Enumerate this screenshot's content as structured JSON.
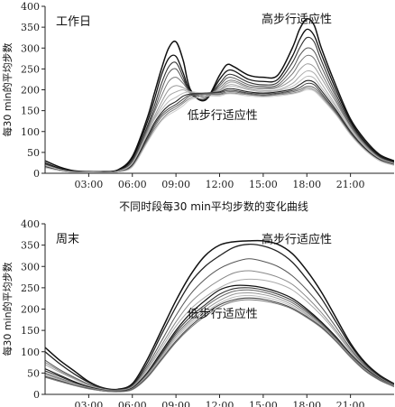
{
  "figure": {
    "caption": "不同时段每30 min平均步数的变化曲线"
  },
  "chart_data": [
    {
      "type": "line",
      "panel_label": "工作日",
      "ylabel": "每30 min的平均步数",
      "xlabel": "",
      "xlim": [
        0,
        24
      ],
      "ylim": [
        0,
        400
      ],
      "x_ticks": [
        {
          "x": 3,
          "label": "03:00"
        },
        {
          "x": 6,
          "label": "06:00"
        },
        {
          "x": 9,
          "label": "09:00"
        },
        {
          "x": 12,
          "label": "12:00"
        },
        {
          "x": 15,
          "label": "15:00"
        },
        {
          "x": 18,
          "label": "18:00"
        },
        {
          "x": 21,
          "label": "21:00"
        }
      ],
      "y_ticks": [
        0,
        50,
        100,
        150,
        200,
        250,
        300,
        350,
        400
      ],
      "annotations": [
        {
          "text": "高步行适应性",
          "x": 17.3,
          "y": 360
        },
        {
          "text": "低步行适应性",
          "x": 12.2,
          "y": 130
        }
      ],
      "x": [
        0,
        1,
        2,
        3,
        4,
        5,
        6,
        7,
        7.5,
        8,
        8.5,
        9,
        9.5,
        10,
        11,
        12,
        12.5,
        13,
        14,
        15,
        16,
        17,
        17.5,
        18,
        18.5,
        19,
        20,
        21,
        22,
        23,
        24
      ],
      "series": [
        {
          "color": "#111111",
          "width": 1.5,
          "values": [
            30,
            15,
            6,
            4,
            4,
            8,
            40,
            130,
            190,
            250,
            300,
            315,
            270,
            200,
            175,
            235,
            260,
            255,
            235,
            230,
            235,
            300,
            345,
            370,
            355,
            300,
            210,
            130,
            80,
            45,
            30
          ]
        },
        {
          "color": "#111111",
          "width": 1.3,
          "values": [
            25,
            12,
            5,
            3,
            4,
            7,
            35,
            120,
            175,
            235,
            275,
            280,
            240,
            195,
            175,
            225,
            245,
            245,
            225,
            220,
            225,
            280,
            320,
            345,
            330,
            285,
            200,
            125,
            75,
            42,
            28
          ]
        },
        {
          "color": "#333333",
          "width": 1.1,
          "values": [
            22,
            10,
            4,
            3,
            3,
            6,
            30,
            110,
            160,
            215,
            255,
            265,
            230,
            190,
            178,
            215,
            235,
            235,
            218,
            212,
            218,
            265,
            300,
            325,
            315,
            270,
            190,
            120,
            72,
            40,
            26
          ]
        },
        {
          "color": "#555555",
          "width": 1.0,
          "values": [
            20,
            9,
            4,
            3,
            3,
            5,
            28,
            105,
            150,
            200,
            240,
            250,
            222,
            195,
            182,
            210,
            228,
            228,
            212,
            208,
            212,
            250,
            282,
            300,
            292,
            255,
            182,
            115,
            70,
            38,
            25
          ]
        },
        {
          "color": "#777777",
          "width": 1.0,
          "values": [
            18,
            8,
            3,
            2,
            3,
            5,
            25,
            100,
            145,
            185,
            220,
            230,
            215,
            195,
            185,
            205,
            220,
            222,
            208,
            205,
            208,
            238,
            265,
            282,
            275,
            240,
            175,
            112,
            68,
            37,
            24
          ]
        },
        {
          "color": "#999999",
          "width": 1.0,
          "values": [
            20,
            9,
            4,
            3,
            3,
            5,
            25,
            95,
            135,
            170,
            200,
            210,
            205,
            195,
            188,
            200,
            215,
            218,
            205,
            202,
            205,
            225,
            248,
            262,
            255,
            228,
            170,
            110,
            66,
            36,
            23
          ]
        },
        {
          "color": "#aaaaaa",
          "width": 1.0,
          "values": [
            17,
            8,
            3,
            2,
            3,
            4,
            22,
            90,
            130,
            160,
            185,
            195,
            200,
            192,
            190,
            198,
            210,
            212,
            202,
            198,
            200,
            215,
            232,
            245,
            240,
            215,
            162,
            105,
            64,
            35,
            22
          ]
        },
        {
          "color": "#bbbbbb",
          "width": 1.0,
          "values": [
            19,
            9,
            3,
            3,
            3,
            5,
            24,
            92,
            128,
            152,
            172,
            182,
            192,
            195,
            192,
            197,
            207,
            208,
            200,
            195,
            198,
            208,
            220,
            232,
            228,
            205,
            158,
            103,
            62,
            34,
            22
          ]
        },
        {
          "color": "#222222",
          "width": 1.1,
          "values": [
            16,
            7,
            3,
            2,
            3,
            4,
            20,
            85,
            120,
            145,
            162,
            172,
            185,
            190,
            192,
            195,
            202,
            202,
            195,
            192,
            195,
            202,
            212,
            222,
            218,
            198,
            152,
            100,
            60,
            33,
            21
          ]
        },
        {
          "color": "#444444",
          "width": 1.0,
          "values": [
            15,
            7,
            3,
            2,
            2,
            4,
            18,
            80,
            115,
            140,
            155,
            165,
            178,
            188,
            192,
            193,
            198,
            198,
            192,
            190,
            192,
            198,
            205,
            215,
            212,
            192,
            148,
            98,
            58,
            32,
            20
          ]
        },
        {
          "color": "#666666",
          "width": 1.0,
          "values": [
            14,
            6,
            3,
            2,
            2,
            4,
            18,
            78,
            110,
            135,
            150,
            160,
            172,
            185,
            190,
            190,
            195,
            195,
            190,
            187,
            190,
            195,
            200,
            208,
            205,
            188,
            145,
            95,
            57,
            31,
            20
          ]
        },
        {
          "color": "#888888",
          "width": 1.0,
          "values": [
            14,
            6,
            2,
            2,
            2,
            3,
            16,
            75,
            105,
            128,
            145,
            155,
            168,
            180,
            188,
            188,
            192,
            192,
            188,
            185,
            188,
            192,
            196,
            204,
            200,
            184,
            142,
            93,
            56,
            30,
            19
          ]
        },
        {
          "color": "#cccccc",
          "width": 1.0,
          "values": [
            13,
            6,
            2,
            2,
            2,
            3,
            15,
            72,
            100,
            125,
            140,
            150,
            162,
            176,
            185,
            185,
            190,
            190,
            185,
            183,
            185,
            190,
            194,
            200,
            197,
            180,
            140,
            92,
            55,
            30,
            19
          ]
        }
      ]
    },
    {
      "type": "line",
      "panel_label": "周末",
      "ylabel": "每30 min的平均步数",
      "xlabel": "",
      "xlim": [
        0,
        24
      ],
      "ylim": [
        0,
        400
      ],
      "x_ticks": [
        {
          "x": 3,
          "label": "03:00"
        },
        {
          "x": 6,
          "label": "06:00"
        },
        {
          "x": 9,
          "label": "09:00"
        },
        {
          "x": 12,
          "label": "12:00"
        },
        {
          "x": 15,
          "label": "15:00"
        },
        {
          "x": 18,
          "label": "18:00"
        },
        {
          "x": 21,
          "label": "21:00"
        }
      ],
      "y_ticks": [
        0,
        50,
        100,
        150,
        200,
        250,
        300,
        350,
        400
      ],
      "annotations": [
        {
          "text": "高步行适应性",
          "x": 17.3,
          "y": 355
        },
        {
          "text": "低步行适应性",
          "x": 12.2,
          "y": 180
        }
      ],
      "x": [
        0,
        1,
        2,
        3,
        4,
        5,
        6,
        7,
        8,
        9,
        10,
        11,
        12,
        13,
        14,
        15,
        16,
        17,
        18,
        19,
        20,
        21,
        22,
        23,
        24
      ],
      "series": [
        {
          "color": "#111111",
          "width": 1.5,
          "values": [
            110,
            80,
            55,
            30,
            15,
            12,
            25,
            80,
            150,
            220,
            280,
            325,
            350,
            358,
            360,
            360,
            352,
            330,
            290,
            240,
            180,
            120,
            75,
            45,
            25
          ]
        },
        {
          "color": "#222222",
          "width": 1.3,
          "values": [
            100,
            72,
            48,
            28,
            14,
            11,
            22,
            72,
            140,
            205,
            262,
            300,
            325,
            345,
            352,
            348,
            335,
            310,
            270,
            225,
            170,
            115,
            72,
            43,
            24
          ]
        },
        {
          "color": "#555555",
          "width": 1.0,
          "values": [
            80,
            58,
            40,
            24,
            13,
            10,
            20,
            65,
            125,
            185,
            235,
            270,
            295,
            310,
            318,
            312,
            300,
            278,
            245,
            205,
            158,
            108,
            68,
            40,
            22
          ]
        },
        {
          "color": "#888888",
          "width": 1.0,
          "values": [
            75,
            55,
            38,
            22,
            12,
            10,
            18,
            60,
            115,
            170,
            215,
            245,
            268,
            285,
            290,
            285,
            275,
            258,
            228,
            192,
            150,
            104,
            66,
            39,
            21
          ]
        },
        {
          "color": "#aaaaaa",
          "width": 1.0,
          "values": [
            70,
            52,
            36,
            21,
            12,
            9,
            17,
            56,
            108,
            160,
            200,
            228,
            250,
            265,
            270,
            268,
            260,
            245,
            218,
            185,
            145,
            100,
            64,
            38,
            21
          ]
        },
        {
          "color": "#111111",
          "width": 1.2,
          "values": [
            60,
            45,
            30,
            18,
            10,
            8,
            15,
            50,
            100,
            150,
            190,
            220,
            245,
            255,
            255,
            250,
            240,
            225,
            200,
            170,
            135,
            95,
            62,
            37,
            20
          ]
        },
        {
          "color": "#333333",
          "width": 1.1,
          "values": [
            55,
            42,
            28,
            17,
            10,
            8,
            14,
            48,
            95,
            145,
            182,
            210,
            235,
            248,
            250,
            245,
            235,
            220,
            196,
            168,
            133,
            94,
            61,
            36,
            20
          ]
        },
        {
          "color": "#666666",
          "width": 1.0,
          "values": [
            50,
            38,
            26,
            16,
            9,
            8,
            13,
            46,
            92,
            140,
            175,
            205,
            228,
            242,
            245,
            240,
            230,
            215,
            192,
            165,
            130,
            92,
            60,
            36,
            20
          ]
        },
        {
          "color": "#999999",
          "width": 1.0,
          "values": [
            48,
            36,
            25,
            15,
            9,
            7,
            13,
            44,
            88,
            135,
            170,
            198,
            220,
            235,
            238,
            234,
            225,
            210,
            188,
            162,
            128,
            90,
            58,
            35,
            19
          ]
        },
        {
          "color": "#bbbbbb",
          "width": 1.0,
          "values": [
            45,
            34,
            24,
            15,
            9,
            7,
            12,
            42,
            85,
            130,
            165,
            192,
            214,
            228,
            232,
            228,
            220,
            206,
            185,
            160,
            126,
            89,
            57,
            34,
            19
          ]
        },
        {
          "color": "#444444",
          "width": 1.1,
          "values": [
            42,
            32,
            22,
            14,
            8,
            7,
            12,
            40,
            82,
            125,
            160,
            188,
            210,
            222,
            226,
            223,
            215,
            202,
            182,
            158,
            125,
            88,
            56,
            34,
            18
          ]
        },
        {
          "color": "#777777",
          "width": 1.0,
          "values": [
            40,
            30,
            21,
            13,
            8,
            6,
            11,
            38,
            80,
            122,
            156,
            183,
            205,
            218,
            222,
            219,
            212,
            200,
            180,
            156,
            124,
            87,
            55,
            33,
            18
          ]
        }
      ]
    }
  ]
}
